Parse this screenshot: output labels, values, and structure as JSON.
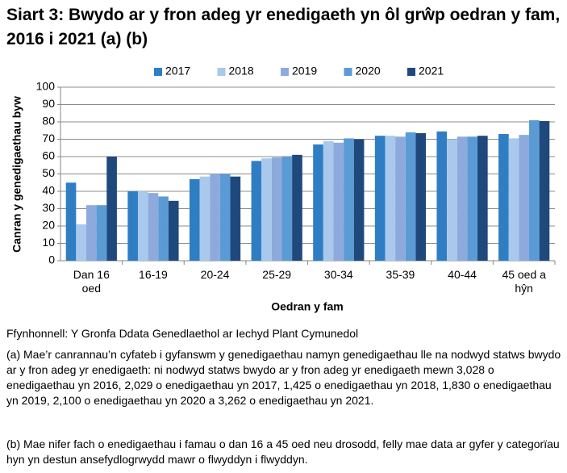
{
  "chart_data": {
    "type": "bar",
    "title": "Siart 3: Bwydo ar y fron adeg yr enedigaeth yn ôl grŵp oedran y fam, 2016 i 2021 (a) (b)",
    "x_label": "Oedran y fam",
    "y_label": "Canran y genedigaethau byw",
    "categories": [
      "Dan 16 oed",
      "16-19",
      "20-24",
      "25-29",
      "30-34",
      "35-39",
      "40-44",
      "45 oed a hŷn"
    ],
    "series": [
      {
        "name": "2017",
        "color": "#2f7ec4",
        "values": [
          45,
          40,
          47,
          57.5,
          67,
          72,
          74.5,
          73
        ]
      },
      {
        "name": "2018",
        "color": "#a9c9ec",
        "values": [
          21,
          40,
          48.5,
          59,
          69,
          72,
          70,
          70.5
        ]
      },
      {
        "name": "2019",
        "color": "#8eaadc",
        "values": [
          32,
          39,
          50,
          59.5,
          68,
          71.5,
          71.5,
          72.5
        ]
      },
      {
        "name": "2020",
        "color": "#5b9bd5",
        "values": [
          32,
          37,
          50,
          60,
          70.5,
          74,
          71.5,
          81
        ]
      },
      {
        "name": "2021",
        "color": "#1f497d",
        "values": [
          60,
          34.5,
          48.5,
          61,
          70,
          73.5,
          72,
          80.5
        ]
      }
    ],
    "ylim": [
      0,
      100
    ],
    "yticks": [
      0,
      10,
      20,
      30,
      40,
      50,
      60,
      70,
      80,
      90,
      100
    ],
    "grid": true,
    "legend": "top"
  },
  "source": "Ffynhonnell: Y Gronfa Ddata Genedlaethol ar Iechyd Plant Cymunedol",
  "notes": [
    "(a) Mae’r canrannau’n cyfateb i gyfanswm y genedigaethau namyn genedigaethau lle na nodwyd statws bwydo ar y fron adeg yr enedigaeth: ni nodwyd statws bwydo ar y fron adeg yr enedigaeth mewn 3,028 o enedigaethau yn 2016, 2,029 o enedigaethau yn 2017, 1,425 o enedigaethau yn 2018, 1,830 o enedigaethau yn 2019, 2,100 o enedigaethau yn 2020 a 3,262 o enedigaethau yn 2021.",
    "(b) Mae nifer fach o enedigaethau i famau o dan 16 a 45 oed neu drosodd, felly mae data ar gyfer y categorïau hyn yn destun ansefydlogrwydd mawr o flwyddyn i flwyddyn."
  ]
}
